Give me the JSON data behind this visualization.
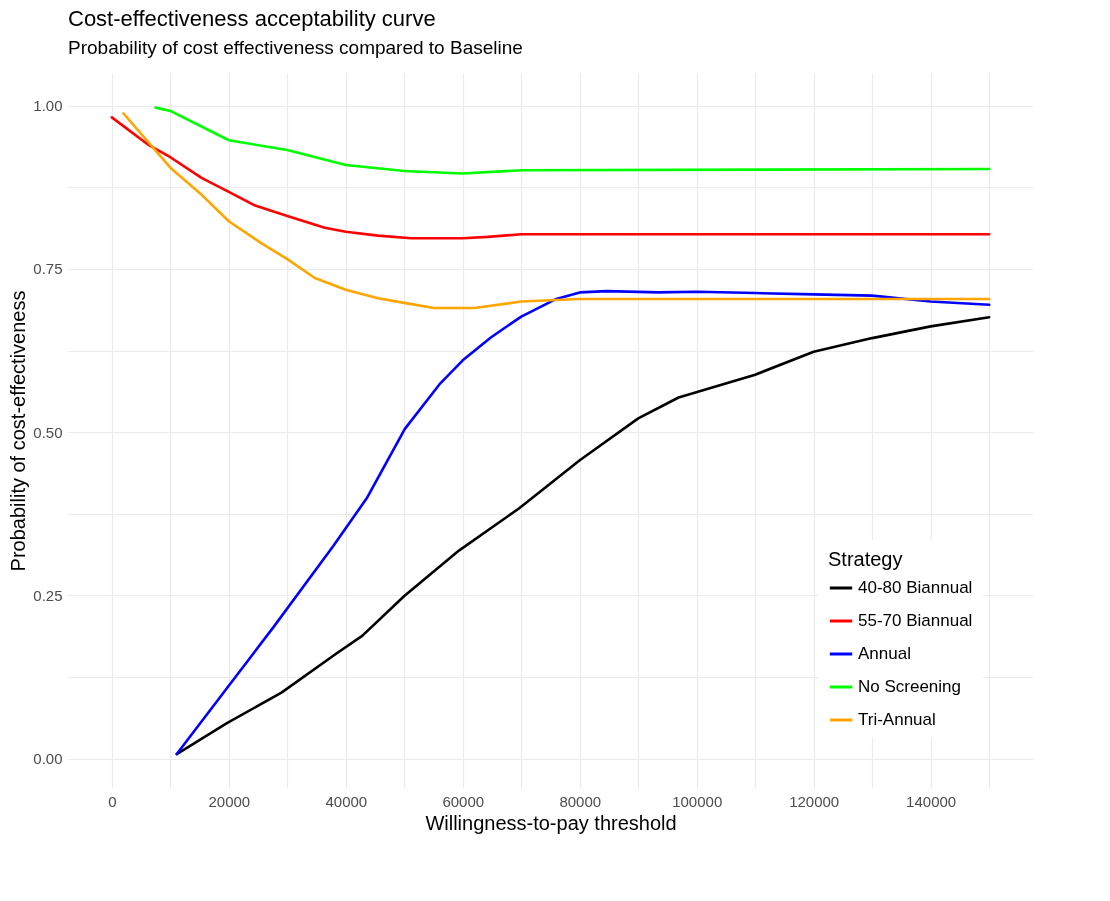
{
  "chart_data": {
    "type": "line",
    "title": "Cost-effectiveness acceptability curve",
    "subtitle": "Probability of cost effectiveness compared to Baseline",
    "xlabel": "Willingness-to-pay threshold",
    "ylabel": "Probability of cost-effectiveness",
    "legend_title": "Strategy",
    "xlim": [
      -7500,
      157500
    ],
    "ylim": [
      -0.045,
      1.05
    ],
    "xticks": [
      0,
      {
        "value": 10000,
        "label": null
      },
      20000,
      {
        "value": 30000,
        "label": null
      },
      40000,
      {
        "value": 50000,
        "label": null
      },
      60000,
      {
        "value": 70000,
        "label": null
      },
      80000,
      {
        "value": 90000,
        "label": null
      },
      100000,
      {
        "value": 110000,
        "label": null
      },
      120000,
      {
        "value": 130000,
        "label": null
      },
      140000,
      {
        "value": 150000,
        "label": null
      }
    ],
    "yticks": [
      {
        "value": 0,
        "label": "0.00"
      },
      {
        "value": 0.125,
        "label": null
      },
      {
        "value": 0.25,
        "label": "0.25"
      },
      {
        "value": 0.375,
        "label": null
      },
      {
        "value": 0.5,
        "label": "0.50"
      },
      {
        "value": 0.625,
        "label": null
      },
      {
        "value": 0.75,
        "label": "0.75"
      },
      {
        "value": 0.875,
        "label": null
      },
      {
        "value": 1,
        "label": "1.00"
      }
    ],
    "grid": true,
    "legend": "bottom right",
    "marker": "none",
    "line_style": "solid",
    "series": [
      {
        "name": "40-80 Biannual",
        "color": "#000000",
        "x": [
          11100,
          19600,
          29000,
          38400,
          42800,
          50000,
          59400,
          69600,
          80000,
          90000,
          96900,
          110000,
          120000,
          130000,
          140000,
          150000
        ],
        "values": [
          0.007,
          0.054,
          0.101,
          0.161,
          0.188,
          0.249,
          0.319,
          0.383,
          0.457,
          0.521,
          0.553,
          0.588,
          0.623,
          0.644,
          0.662,
          0.676
        ]
      },
      {
        "name": "55-70 Biannual",
        "color": "#ff0000",
        "x": [
          0,
          6400,
          10000,
          15400,
          20000,
          24500,
          30000,
          36400,
          40000,
          45500,
          51200,
          60000,
          64300,
          70000,
          150000
        ],
        "values": [
          0.982,
          0.939,
          0.921,
          0.889,
          0.868,
          0.847,
          0.831,
          0.813,
          0.807,
          0.801,
          0.797,
          0.797,
          0.799,
          0.803,
          0.803
        ]
      },
      {
        "name": "Annual",
        "color": "#0000ff",
        "x": [
          11100,
          19600,
          27600,
          37800,
          43600,
          50100,
          56000,
          60000,
          64800,
          70000,
          76000,
          80000,
          84600,
          93500,
          100000,
          110000,
          120000,
          130000,
          140000,
          150000
        ],
        "values": [
          0.007,
          0.107,
          0.201,
          0.325,
          0.399,
          0.505,
          0.573,
          0.61,
          0.645,
          0.677,
          0.704,
          0.714,
          0.716,
          0.714,
          0.715,
          0.713,
          0.711,
          0.709,
          0.7,
          0.695
        ]
      },
      {
        "name": "No Screening",
        "color": "#00ff00",
        "x": [
          7500,
          10000,
          20000,
          30000,
          40000,
          50000,
          60000,
          70000,
          150000
        ],
        "values": [
          0.997,
          0.992,
          0.947,
          0.932,
          0.909,
          0.9,
          0.896,
          0.901,
          0.903
        ]
      },
      {
        "name": "Tri-Annual",
        "color": "#ffa500",
        "x": [
          2000,
          10000,
          15400,
          20000,
          25600,
          30000,
          34700,
          40000,
          45500,
          50000,
          55100,
          62000,
          70000,
          80000,
          150000
        ],
        "values": [
          0.988,
          0.905,
          0.863,
          0.823,
          0.789,
          0.765,
          0.736,
          0.718,
          0.705,
          0.698,
          0.69,
          0.69,
          0.7,
          0.704,
          0.704
        ]
      }
    ]
  }
}
